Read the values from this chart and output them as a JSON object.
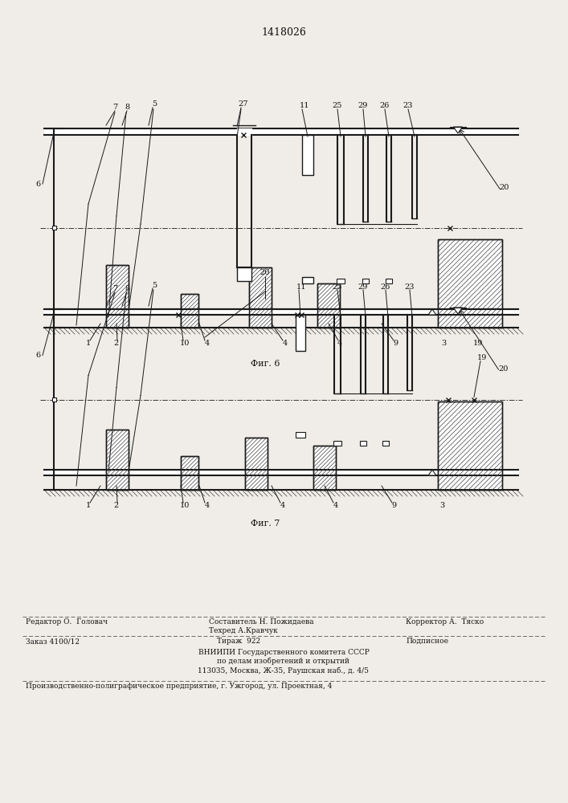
{
  "title": "1418026",
  "bg_color": "#f0ede8",
  "fig6_label": "Фиг. 6",
  "fig7_label": "Фиг. 7",
  "lc": "#1a1a1a",
  "footer_editor": "Редактор О.  Головач",
  "footer_comp1": "Составитель Н. Пожидаева",
  "footer_comp2": "Техред А.Кравчук",
  "footer_corr": "Корректор А.  Тяско",
  "footer_order": "Заказ 4100/12",
  "footer_circ": "Тираж  922",
  "footer_sign": "Подписное",
  "footer_vn1": "ВНИИПИ Государственного комитета СССР",
  "footer_vn2": "по делам изобретений и открытий",
  "footer_vn3": "113035, Москва, Ж-35, Раушская наб., д. 4/5",
  "footer_prod": "Производственно-полиграфическое предприятие, г. Ужгород, ул. Проектная, 4"
}
